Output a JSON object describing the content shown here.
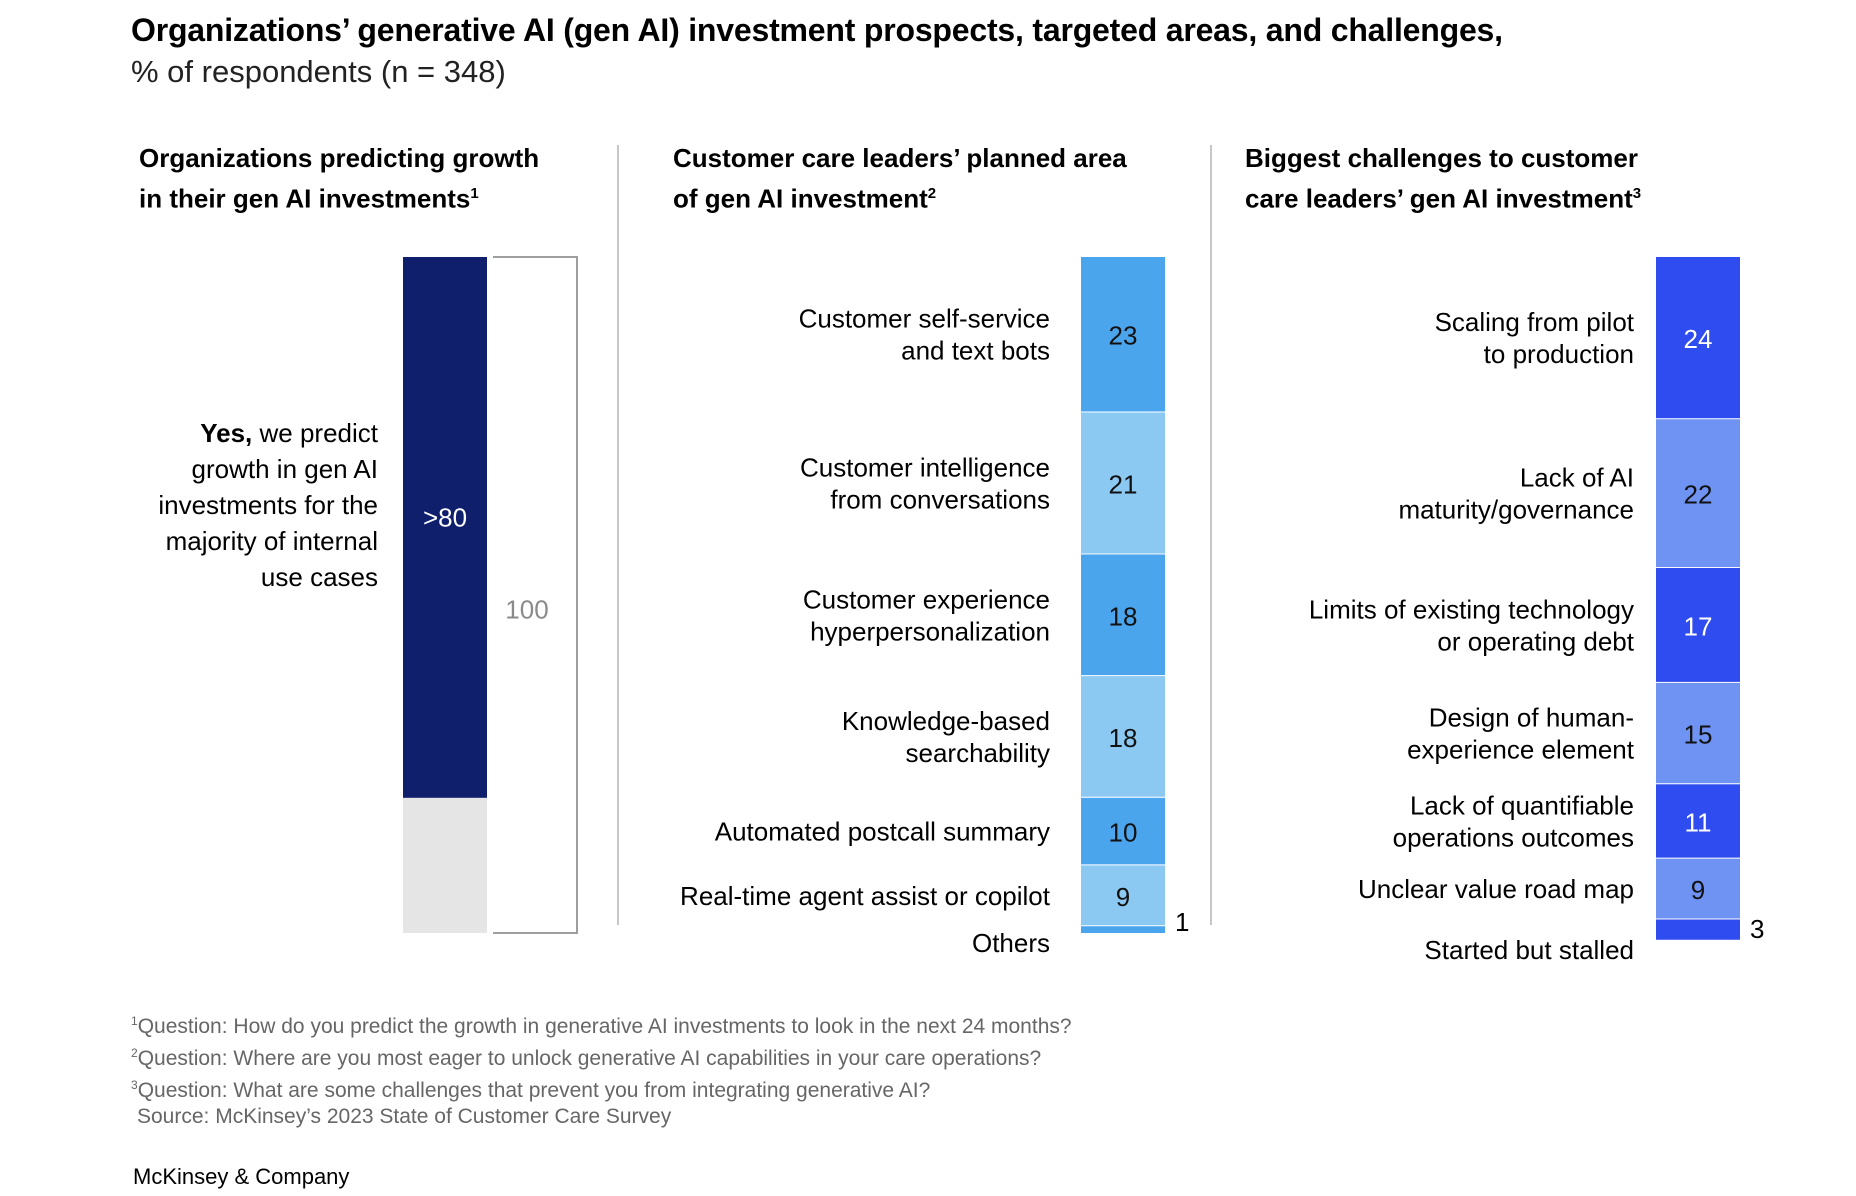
{
  "title": "Organizations’ generative AI (gen AI) investment prospects, targeted areas, and challenges,",
  "subtitle": "% of respondents (n = 348)",
  "colors": {
    "navy": "#0f1f6b",
    "light_gray": "#e5e5e5",
    "outline_gray": "#9e9e9e",
    "blue_mid": "#4ba5ed",
    "blue_light": "#8bc8f2",
    "royal": "#2f4cf0",
    "royal_light": "#6e93f2"
  },
  "panels": {
    "p1": {
      "title_line1": "Organizations predicting growth",
      "title_line2": "in their gen AI investments",
      "note": "1"
    },
    "p2": {
      "title_line1": "Customer care leaders’ planned area",
      "title_line2": "of gen AI investment",
      "note": "2"
    },
    "p3": {
      "title_line1": "Biggest challenges to customer",
      "title_line2": "care leaders’ gen AI investment",
      "note": "3"
    }
  },
  "yes_label": {
    "bold": "Yes,",
    "rest": " we predict growth in gen AI investments for the majority of internal use cases"
  },
  "chart_data": [
    {
      "type": "bar",
      "title": "Organizations predicting growth in their gen AI investments",
      "categories": [
        "Yes, we predict growth in gen AI investments for the majority of internal use cases"
      ],
      "values": [
        80
      ],
      "value_label": ">80",
      "total": 100,
      "total_label": "100",
      "ylim": [
        0,
        100
      ]
    },
    {
      "type": "bar",
      "title": "Customer care leaders’ planned area of gen AI investment",
      "stacked": true,
      "categories": [
        "Customer self-service and text bots",
        "Customer intelligence from conversations",
        "Customer experience hyperpersonalization",
        "Knowledge-based searchability",
        "Automated postcall summary",
        "Real-time agent assist or copilot",
        "Others"
      ],
      "label_lines": [
        [
          "Customer self-service",
          "and text bots"
        ],
        [
          "Customer intelligence",
          "from conversations"
        ],
        [
          "Customer experience",
          "hyperpersonalization"
        ],
        [
          "Knowledge-based",
          "searchability"
        ],
        [
          "Automated postcall summary"
        ],
        [
          "Real-time agent assist or copilot"
        ],
        [
          "Others"
        ]
      ],
      "values": [
        23,
        21,
        18,
        18,
        10,
        9,
        1
      ],
      "segment_colors": [
        "#4ba5ed",
        "#8bc8f2",
        "#4ba5ed",
        "#8bc8f2",
        "#4ba5ed",
        "#8bc8f2",
        "#4ba5ed"
      ],
      "ylim": [
        0,
        100
      ]
    },
    {
      "type": "bar",
      "title": "Biggest challenges to customer care leaders’ gen AI investment",
      "stacked": true,
      "categories": [
        "Scaling from pilot to production",
        "Lack of AI maturity/governance",
        "Limits of existing technology or operating debt",
        "Design of human-experience element",
        "Lack of quantifiable operations outcomes",
        "Unclear value road map",
        "Started but stalled"
      ],
      "label_lines": [
        [
          "Scaling from pilot",
          "to production"
        ],
        [
          "Lack of AI",
          "maturity/governance"
        ],
        [
          "Limits of existing technology",
          "or operating debt"
        ],
        [
          "Design of human-",
          "experience element"
        ],
        [
          "Lack of quantifiable",
          "operations outcomes"
        ],
        [
          "Unclear value road map"
        ],
        [
          "Started but stalled"
        ]
      ],
      "values": [
        24,
        22,
        17,
        15,
        11,
        9,
        3
      ],
      "segment_colors": [
        "#2f4cf0",
        "#6e93f2",
        "#2f4cf0",
        "#6e93f2",
        "#2f4cf0",
        "#6e93f2",
        "#2f4cf0"
      ],
      "ylim": [
        0,
        100
      ]
    }
  ],
  "footnotes": [
    {
      "num": "1",
      "text": "Question: How do you predict the growth in generative AI investments to look in the next 24 months?"
    },
    {
      "num": "2",
      "text": "Question: Where are you most eager to unlock generative AI capabilities in your care operations?"
    },
    {
      "num": "3",
      "text": "Question: What are some challenges that prevent you from integrating generative AI?"
    }
  ],
  "source": "Source: McKinsey’s 2023 State of Customer Care Survey",
  "brand": "McKinsey & Company"
}
